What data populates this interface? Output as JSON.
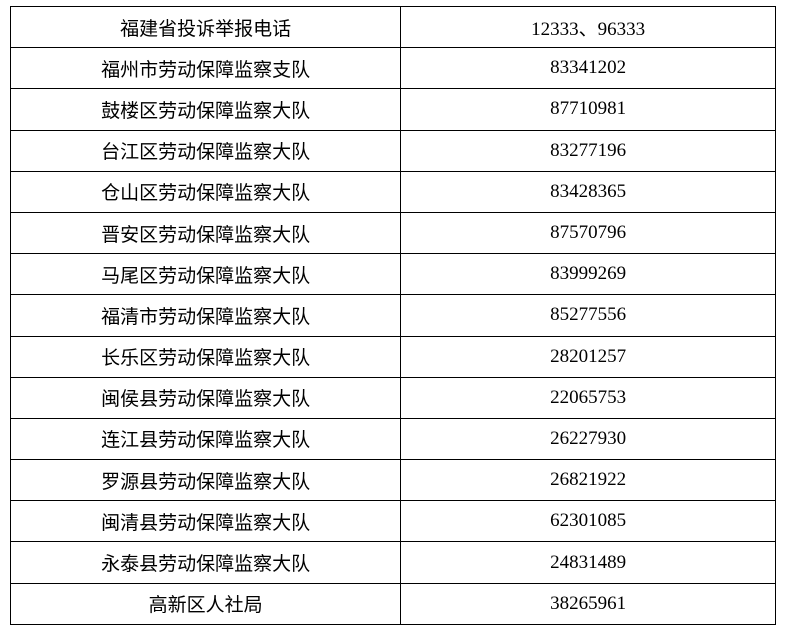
{
  "table": {
    "type": "table",
    "border_color": "#000000",
    "background_color": "#ffffff",
    "text_color": "#000000",
    "font_size_pt": 14,
    "font_family": "SimSun",
    "column_widths_pct": [
      51,
      49
    ],
    "alignment": [
      "center",
      "center"
    ],
    "rows": [
      {
        "name": "福建省投诉举报电话",
        "phone": "12333、96333"
      },
      {
        "name": "福州市劳动保障监察支队",
        "phone": "83341202"
      },
      {
        "name": "鼓楼区劳动保障监察大队",
        "phone": "87710981"
      },
      {
        "name": "台江区劳动保障监察大队",
        "phone": "83277196"
      },
      {
        "name": "仓山区劳动保障监察大队",
        "phone": "83428365"
      },
      {
        "name": "晋安区劳动保障监察大队",
        "phone": "87570796"
      },
      {
        "name": "马尾区劳动保障监察大队",
        "phone": "83999269"
      },
      {
        "name": "福清市劳动保障监察大队",
        "phone": "85277556"
      },
      {
        "name": "长乐区劳动保障监察大队",
        "phone": "28201257"
      },
      {
        "name": "闽侯县劳动保障监察大队",
        "phone": "22065753"
      },
      {
        "name": "连江县劳动保障监察大队",
        "phone": "26227930"
      },
      {
        "name": "罗源县劳动保障监察大队",
        "phone": "26821922"
      },
      {
        "name": "闽清县劳动保障监察大队",
        "phone": "62301085"
      },
      {
        "name": "永泰县劳动保障监察大队",
        "phone": "24831489"
      },
      {
        "name": "高新区人社局",
        "phone": "38265961"
      }
    ]
  }
}
